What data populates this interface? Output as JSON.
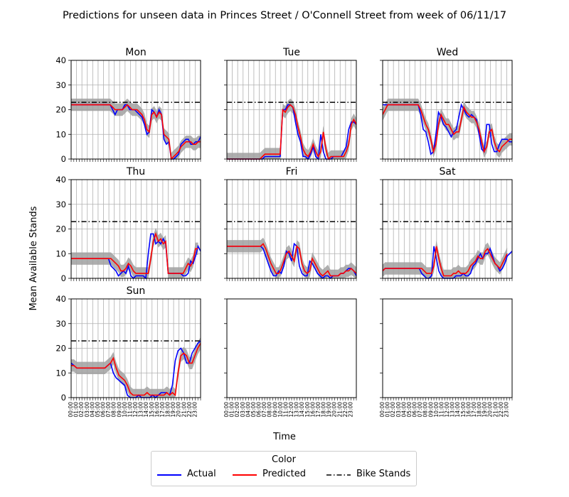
{
  "chart_data": {
    "type": "line",
    "title": "Predictions for unseen data in Princes Street / O'Connell Street from week of 06/11/17",
    "xlabel": "Time",
    "ylabel": "Mean Available Stands",
    "ylim": [
      0,
      40
    ],
    "yticks": [
      "0",
      "10",
      "20",
      "30",
      "40"
    ],
    "x_ticks": [
      "00:00",
      "01:00",
      "02:00",
      "03:00",
      "04:00",
      "05:00",
      "06:00",
      "07:00",
      "08:00",
      "09:00",
      "10:00",
      "11:00",
      "12:00",
      "13:00",
      "14:00",
      "15:00",
      "16:00",
      "17:00",
      "18:00",
      "19:00",
      "20:00",
      "21:00",
      "22:00",
      "23:00"
    ],
    "bike_stands": 23,
    "grid": true,
    "legend": {
      "title": "Color",
      "placement": "bottom-center",
      "entries": [
        "Actual",
        "Predicted",
        "Bike Stands"
      ]
    },
    "colors": {
      "actual": "#0000ff",
      "predicted": "#ff0000",
      "bike_stands": "#000000",
      "band": "#a0a0a0"
    },
    "panels": [
      {
        "title": "Mon",
        "actual": [
          22,
          22,
          22,
          22,
          22,
          22,
          22,
          22,
          22,
          22,
          22,
          22,
          22,
          22,
          22,
          22,
          22,
          20,
          18,
          20,
          20,
          20,
          22,
          22,
          20,
          20,
          20,
          19,
          18,
          17,
          14,
          10,
          11,
          20,
          19,
          17,
          20,
          18,
          8,
          6,
          7,
          0,
          0,
          1,
          2,
          6,
          7,
          8,
          8,
          6,
          6,
          7,
          7,
          9
        ],
        "predicted": [
          22,
          22,
          22,
          22,
          22,
          22,
          22,
          22,
          22,
          22,
          22,
          22,
          22,
          22,
          22,
          22,
          22,
          21,
          20,
          20,
          20,
          20,
          21,
          22,
          21,
          20,
          20,
          20,
          19,
          18,
          16,
          12,
          11,
          18,
          19,
          17,
          19,
          18,
          10,
          9,
          8,
          0,
          1,
          2,
          3,
          5,
          6,
          7,
          7,
          7,
          6,
          6,
          7,
          7
        ]
      },
      {
        "title": "Tue",
        "actual": [
          0,
          0,
          0,
          0,
          0,
          0,
          0,
          0,
          0,
          0,
          0,
          0,
          0,
          0,
          0,
          1,
          1,
          1,
          1,
          1,
          1,
          1,
          20,
          20,
          22,
          22,
          21,
          15,
          10,
          7,
          1,
          1,
          0,
          2,
          5,
          1,
          0,
          10,
          3,
          0,
          0,
          0,
          1,
          1,
          1,
          1,
          3,
          5,
          12,
          15,
          15,
          14
        ],
        "predicted": [
          0,
          0,
          0,
          0,
          0,
          0,
          0,
          0,
          0,
          0,
          0,
          0,
          0,
          0,
          1,
          2,
          2,
          2,
          2,
          2,
          2,
          2,
          20,
          19,
          21,
          22,
          21,
          18,
          13,
          9,
          4,
          2,
          1,
          3,
          6,
          3,
          1,
          3,
          11,
          4,
          0,
          1,
          1,
          1,
          1,
          1,
          1,
          3,
          6,
          14,
          16,
          14
        ]
      },
      {
        "title": "Wed",
        "actual": [
          22,
          22,
          22,
          22,
          22,
          22,
          22,
          22,
          22,
          22,
          22,
          22,
          22,
          22,
          22,
          18,
          12,
          11,
          7,
          2,
          3,
          10,
          19,
          17,
          14,
          13,
          11,
          9,
          11,
          12,
          17,
          22,
          20,
          18,
          17,
          18,
          17,
          16,
          10,
          4,
          3,
          14,
          14,
          6,
          3,
          3,
          6,
          8,
          8,
          8,
          7,
          7
        ],
        "predicted": [
          18,
          20,
          22,
          22,
          22,
          22,
          22,
          22,
          22,
          22,
          22,
          22,
          22,
          22,
          22,
          20,
          17,
          14,
          12,
          8,
          3,
          6,
          14,
          18,
          16,
          14,
          14,
          12,
          10,
          11,
          11,
          16,
          21,
          19,
          18,
          17,
          17,
          15,
          12,
          7,
          3,
          5,
          11,
          12,
          7,
          4,
          3,
          5,
          6,
          7,
          8,
          8
        ]
      },
      {
        "title": "Thu",
        "actual": [
          8,
          8,
          8,
          8,
          8,
          8,
          8,
          8,
          8,
          8,
          8,
          8,
          8,
          8,
          8,
          8,
          5,
          4,
          3,
          1,
          2,
          3,
          2,
          5,
          1,
          0,
          1,
          1,
          1,
          1,
          0,
          10,
          18,
          18,
          14,
          15,
          14,
          16,
          14,
          2,
          2,
          2,
          2,
          2,
          2,
          1,
          1,
          2,
          7,
          6,
          9,
          13,
          11
        ],
        "predicted": [
          8,
          8,
          8,
          8,
          8,
          8,
          8,
          8,
          8,
          8,
          8,
          8,
          8,
          8,
          8,
          8,
          8,
          7,
          6,
          5,
          3,
          3,
          4,
          6,
          5,
          3,
          2,
          2,
          2,
          2,
          2,
          2,
          8,
          15,
          18,
          15,
          16,
          14,
          15,
          2,
          2,
          2,
          2,
          2,
          2,
          2,
          4,
          6,
          5,
          7,
          12,
          12
        ]
      },
      {
        "title": "Fri",
        "actual": [
          13,
          13,
          13,
          13,
          13,
          13,
          13,
          13,
          13,
          13,
          13,
          13,
          13,
          13,
          12,
          9,
          6,
          3,
          1,
          1,
          3,
          2,
          5,
          11,
          10,
          7,
          14,
          13,
          5,
          2,
          1,
          1,
          7,
          6,
          4,
          2,
          1,
          0,
          1,
          1,
          0,
          1,
          1,
          1,
          2,
          2,
          3,
          4,
          4,
          3,
          1
        ],
        "predicted": [
          13,
          13,
          13,
          13,
          13,
          13,
          13,
          13,
          13,
          13,
          13,
          13,
          13,
          13,
          14,
          12,
          9,
          6,
          4,
          2,
          2,
          4,
          7,
          10,
          11,
          9,
          7,
          13,
          12,
          6,
          3,
          2,
          3,
          8,
          6,
          4,
          2,
          1,
          2,
          3,
          1,
          1,
          1,
          1,
          2,
          2,
          3,
          3,
          4,
          3,
          2
        ]
      },
      {
        "title": "Sat",
        "actual": [
          3,
          4,
          4,
          4,
          4,
          4,
          4,
          4,
          4,
          4,
          4,
          4,
          4,
          4,
          4,
          4,
          2,
          1,
          0,
          0,
          1,
          13,
          8,
          3,
          1,
          0,
          0,
          0,
          0,
          0,
          1,
          1,
          1,
          2,
          1,
          1,
          2,
          5,
          6,
          8,
          10,
          8,
          10,
          10,
          12,
          9,
          6,
          5,
          3,
          4,
          6,
          9,
          10,
          11
        ],
        "predicted": [
          3,
          4,
          4,
          4,
          4,
          4,
          4,
          4,
          4,
          4,
          4,
          4,
          4,
          4,
          4,
          4,
          4,
          3,
          2,
          2,
          2,
          5,
          13,
          8,
          4,
          1,
          1,
          1,
          1,
          2,
          2,
          3,
          2,
          2,
          2,
          3,
          5,
          6,
          7,
          9,
          8,
          8,
          11,
          12,
          10,
          8,
          6,
          5,
          4,
          6,
          8,
          10
        ]
      },
      {
        "title": "Sun",
        "actual": [
          14,
          13,
          12,
          12,
          12,
          12,
          12,
          12,
          12,
          12,
          12,
          12,
          12,
          13,
          14,
          10,
          8,
          7,
          6,
          5,
          1,
          0,
          0,
          0,
          1,
          0,
          0,
          0,
          0,
          1,
          0,
          1,
          2,
          2,
          2,
          1,
          5,
          15,
          19,
          20,
          18,
          14,
          14,
          18,
          20,
          22,
          23
        ],
        "predicted": [
          13,
          13,
          12,
          12,
          12,
          12,
          12,
          12,
          12,
          12,
          12,
          12,
          12,
          13,
          14,
          16,
          12,
          9,
          8,
          7,
          5,
          2,
          1,
          1,
          1,
          1,
          1,
          2,
          1,
          1,
          1,
          1,
          1,
          1,
          2,
          1,
          2,
          1,
          10,
          17,
          18,
          17,
          14,
          14,
          17,
          20,
          22
        ]
      },
      {
        "title": "",
        "actual": [],
        "predicted": []
      },
      {
        "title": "",
        "actual": [],
        "predicted": []
      }
    ]
  }
}
